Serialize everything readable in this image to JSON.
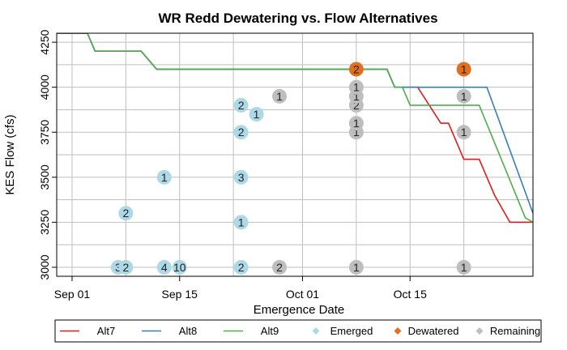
{
  "chart_data": {
    "type": "scatter",
    "title": "WR Redd Dewatering vs. Flow Alternatives",
    "xlabel": "Emergence Date",
    "ylabel": "KES Flow (cfs)",
    "xlim": [
      "2023-08-30",
      "2023-10-31"
    ],
    "ylim": [
      2950,
      4300
    ],
    "x_ticks": [
      {
        "date": "2023-09-01",
        "label": "Sep 01"
      },
      {
        "date": "2023-09-15",
        "label": "Sep 15"
      },
      {
        "date": "2023-10-01",
        "label": "Oct 01"
      },
      {
        "date": "2023-10-15",
        "label": "Oct 15"
      }
    ],
    "x_grid_minor": [
      "2023-09-08",
      "2023-09-22",
      "2023-10-08",
      "2023-10-22"
    ],
    "y_ticks": [
      3000,
      3250,
      3500,
      3750,
      4000,
      4250
    ],
    "y_grid_minor": [
      3125,
      3375,
      3625,
      3875,
      4125
    ],
    "grid": true,
    "legend_position": "bottom",
    "lines": [
      {
        "name": "Alt7",
        "color": "#e41a1c",
        "points": [
          [
            "2023-08-30",
            4300
          ],
          [
            "2023-09-03",
            4300
          ],
          [
            "2023-09-04",
            4200
          ],
          [
            "2023-09-10",
            4200
          ],
          [
            "2023-09-12",
            4100
          ],
          [
            "2023-10-12",
            4100
          ],
          [
            "2023-10-13",
            4000
          ],
          [
            "2023-10-16",
            4000
          ],
          [
            "2023-10-19",
            3800
          ],
          [
            "2023-10-20",
            3800
          ],
          [
            "2023-10-22",
            3600
          ],
          [
            "2023-10-24",
            3600
          ],
          [
            "2023-10-26",
            3400
          ],
          [
            "2023-10-28",
            3250
          ],
          [
            "2023-10-31",
            3250
          ]
        ]
      },
      {
        "name": "Alt8",
        "color": "#377eb8",
        "points": [
          [
            "2023-08-30",
            4300
          ],
          [
            "2023-09-03",
            4300
          ],
          [
            "2023-09-04",
            4200
          ],
          [
            "2023-09-10",
            4200
          ],
          [
            "2023-09-12",
            4100
          ],
          [
            "2023-10-12",
            4100
          ],
          [
            "2023-10-13",
            4000
          ],
          [
            "2023-10-25",
            4000
          ],
          [
            "2023-10-31",
            3300
          ]
        ]
      },
      {
        "name": "Alt9",
        "color": "#4daf4a",
        "points": [
          [
            "2023-08-30",
            4300
          ],
          [
            "2023-09-03",
            4300
          ],
          [
            "2023-09-04",
            4200
          ],
          [
            "2023-09-10",
            4200
          ],
          [
            "2023-09-12",
            4100
          ],
          [
            "2023-10-12",
            4100
          ],
          [
            "2023-10-13",
            4000
          ],
          [
            "2023-10-14",
            4000
          ],
          [
            "2023-10-15",
            3900
          ],
          [
            "2023-10-24",
            3900
          ],
          [
            "2023-10-30",
            3275
          ],
          [
            "2023-10-31",
            3250
          ]
        ]
      }
    ],
    "points": [
      {
        "date": "2023-09-07",
        "flow": 3000,
        "label": "3",
        "status": "Emerged"
      },
      {
        "date": "2023-09-08",
        "flow": 3000,
        "label": "2",
        "status": "Emerged"
      },
      {
        "date": "2023-09-08",
        "flow": 3300,
        "label": "2",
        "status": "Emerged"
      },
      {
        "date": "2023-09-13",
        "flow": 3000,
        "label": "4",
        "status": "Emerged"
      },
      {
        "date": "2023-09-13",
        "flow": 3500,
        "label": "1",
        "status": "Emerged"
      },
      {
        "date": "2023-09-15",
        "flow": 3000,
        "label": "10",
        "status": "Emerged"
      },
      {
        "date": "2023-09-23",
        "flow": 3000,
        "label": "2",
        "status": "Emerged"
      },
      {
        "date": "2023-09-23",
        "flow": 3250,
        "label": "1",
        "status": "Emerged"
      },
      {
        "date": "2023-09-23",
        "flow": 3500,
        "label": "3",
        "status": "Emerged"
      },
      {
        "date": "2023-09-23",
        "flow": 3750,
        "label": "2",
        "status": "Emerged"
      },
      {
        "date": "2023-09-23",
        "flow": 3900,
        "label": "2",
        "status": "Emerged"
      },
      {
        "date": "2023-09-25",
        "flow": 3850,
        "label": "1",
        "status": "Emerged"
      },
      {
        "date": "2023-09-28",
        "flow": 3000,
        "label": "2",
        "status": "Remaining"
      },
      {
        "date": "2023-09-28",
        "flow": 3950,
        "label": "1",
        "status": "Remaining"
      },
      {
        "date": "2023-10-08",
        "flow": 3000,
        "label": "1",
        "status": "Remaining"
      },
      {
        "date": "2023-10-08",
        "flow": 3750,
        "label": "1",
        "status": "Remaining"
      },
      {
        "date": "2023-10-08",
        "flow": 3800,
        "label": "1",
        "status": "Remaining"
      },
      {
        "date": "2023-10-08",
        "flow": 3900,
        "label": "2",
        "status": "Remaining"
      },
      {
        "date": "2023-10-08",
        "flow": 3950,
        "label": "1",
        "status": "Remaining"
      },
      {
        "date": "2023-10-08",
        "flow": 4000,
        "label": "1",
        "status": "Remaining"
      },
      {
        "date": "2023-10-08",
        "flow": 4100,
        "label": "2",
        "status": "Dewatered"
      },
      {
        "date": "2023-10-22",
        "flow": 3000,
        "label": "1",
        "status": "Remaining"
      },
      {
        "date": "2023-10-22",
        "flow": 3750,
        "label": "1",
        "status": "Remaining"
      },
      {
        "date": "2023-10-22",
        "flow": 3950,
        "label": "1",
        "status": "Remaining"
      },
      {
        "date": "2023-10-22",
        "flow": 4100,
        "label": "1",
        "status": "Dewatered"
      }
    ],
    "status_colors": {
      "Emerged": "#add8e6",
      "Dewatered": "#e07020",
      "Remaining": "#bebebe"
    },
    "legend": [
      {
        "label": "Alt7",
        "kind": "line",
        "color": "#e41a1c"
      },
      {
        "label": "Alt8",
        "kind": "line",
        "color": "#377eb8"
      },
      {
        "label": "Alt9",
        "kind": "line",
        "color": "#4daf4a"
      },
      {
        "label": "Emerged",
        "kind": "diamond",
        "color": "#add8e6"
      },
      {
        "label": "Dewatered",
        "kind": "diamond",
        "color": "#e07020"
      },
      {
        "label": "Remaining",
        "kind": "diamond",
        "color": "#bebebe"
      }
    ]
  }
}
